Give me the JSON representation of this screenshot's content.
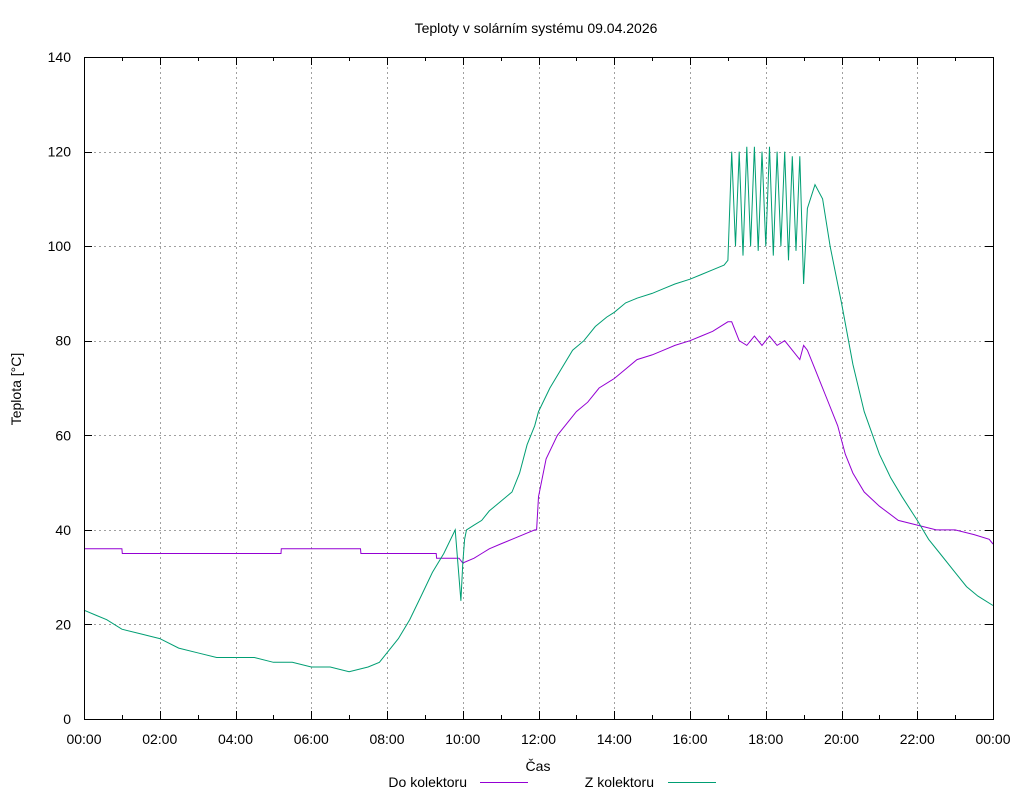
{
  "chart_data": {
    "type": "line",
    "title": "Teploty v solárním systému 09.04.2026",
    "xlabel": "Čas",
    "ylabel": "Teplota [°C]",
    "xlim": [
      0,
      24
    ],
    "ylim": [
      0,
      140
    ],
    "yticks": [
      0,
      20,
      40,
      60,
      80,
      100,
      120,
      140
    ],
    "xticks": [
      0,
      2,
      4,
      6,
      8,
      10,
      12,
      14,
      16,
      18,
      20,
      22,
      24
    ],
    "xtick_labels": [
      "00:00",
      "02:00",
      "04:00",
      "06:00",
      "08:00",
      "10:00",
      "12:00",
      "14:00",
      "16:00",
      "18:00",
      "20:00",
      "22:00",
      "00:00"
    ],
    "grid": true,
    "legend_position": "bottom",
    "series": [
      {
        "name": "Do kolektoru",
        "color": "#9400d3",
        "x": [
          0,
          1,
          1.01,
          5.2,
          5.21,
          7.3,
          7.31,
          9.3,
          9.31,
          9.9,
          10.0,
          10.3,
          10.5,
          10.7,
          11.0,
          11.3,
          11.6,
          11.9,
          11.95,
          12.0,
          12.2,
          12.5,
          12.8,
          13.0,
          13.3,
          13.6,
          14.0,
          14.3,
          14.6,
          15.0,
          15.3,
          15.6,
          16.0,
          16.3,
          16.6,
          17.0,
          17.1,
          17.3,
          17.5,
          17.7,
          17.9,
          18.1,
          18.3,
          18.5,
          18.7,
          18.9,
          19.0,
          19.1,
          19.3,
          19.6,
          19.9,
          20.1,
          20.3,
          20.6,
          21.0,
          21.5,
          22.0,
          22.5,
          23.0,
          23.5,
          23.9,
          24.0
        ],
        "y": [
          36,
          36,
          35,
          35,
          36,
          36,
          35,
          35,
          34,
          34,
          33,
          34,
          35,
          36,
          37,
          38,
          39,
          40,
          40,
          47,
          55,
          60,
          63,
          65,
          67,
          70,
          72,
          74,
          76,
          77,
          78,
          79,
          80,
          81,
          82,
          84,
          84,
          80,
          79,
          81,
          79,
          81,
          79,
          80,
          78,
          76,
          79,
          78,
          74,
          68,
          62,
          56,
          52,
          48,
          45,
          42,
          41,
          40,
          40,
          39,
          38,
          37
        ]
      },
      {
        "name": "Z kolektoru",
        "color": "#009e73",
        "x": [
          0,
          0.3,
          0.6,
          1.0,
          1.5,
          2.0,
          2.5,
          3.0,
          3.5,
          4.0,
          4.5,
          5.0,
          5.5,
          6.0,
          6.5,
          7.0,
          7.5,
          7.8,
          8.0,
          8.3,
          8.6,
          8.9,
          9.2,
          9.5,
          9.8,
          9.95,
          10.0,
          10.05,
          10.1,
          10.3,
          10.5,
          10.7,
          11.0,
          11.3,
          11.5,
          11.7,
          11.9,
          12.0,
          12.3,
          12.6,
          12.9,
          13.2,
          13.5,
          13.8,
          14.0,
          14.3,
          14.6,
          15.0,
          15.3,
          15.6,
          16.0,
          16.3,
          16.6,
          16.9,
          17.0,
          17.1,
          17.2,
          17.3,
          17.4,
          17.5,
          17.6,
          17.7,
          17.8,
          17.9,
          18.0,
          18.1,
          18.2,
          18.3,
          18.4,
          18.5,
          18.6,
          18.7,
          18.8,
          18.9,
          19.0,
          19.1,
          19.3,
          19.5,
          19.7,
          20.0,
          20.3,
          20.6,
          21.0,
          21.3,
          21.6,
          22.0,
          22.3,
          22.6,
          23.0,
          23.3,
          23.6,
          24.0
        ],
        "y": [
          23,
          22,
          21,
          19,
          18,
          17,
          15,
          14,
          13,
          13,
          13,
          12,
          12,
          11,
          11,
          10,
          11,
          12,
          14,
          17,
          21,
          26,
          31,
          35,
          40,
          25,
          33,
          38,
          40,
          41,
          42,
          44,
          46,
          48,
          52,
          58,
          62,
          65,
          70,
          74,
          78,
          80,
          83,
          85,
          86,
          88,
          89,
          90,
          91,
          92,
          93,
          94,
          95,
          96,
          97,
          120,
          100,
          120,
          98,
          121,
          100,
          121,
          99,
          120,
          100,
          121,
          98,
          120,
          100,
          120,
          97,
          119,
          99,
          119,
          92,
          108,
          113,
          110,
          100,
          88,
          75,
          65,
          56,
          51,
          47,
          42,
          38,
          35,
          31,
          28,
          26,
          24
        ]
      }
    ]
  }
}
